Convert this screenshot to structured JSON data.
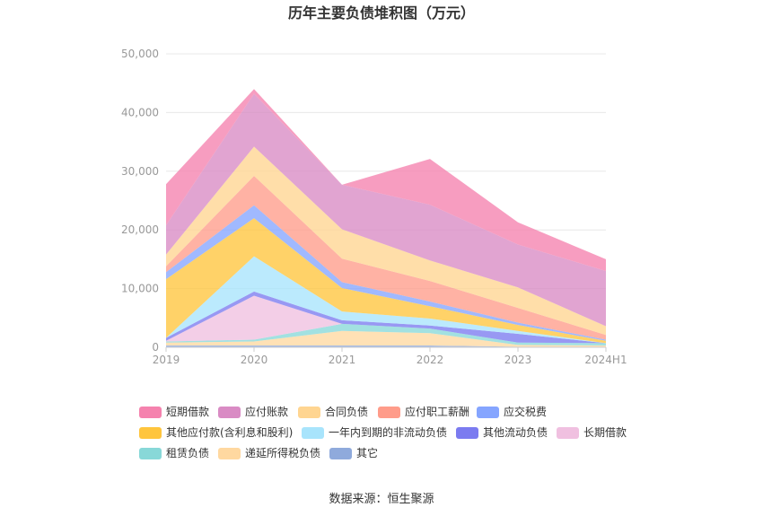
{
  "chart_data": {
    "type": "area",
    "stacked": true,
    "title": "历年主要负债堆积图（万元）",
    "source": "数据来源：恒生聚源",
    "categories": [
      "2019",
      "2020",
      "2021",
      "2022",
      "2023",
      "2024H1"
    ],
    "y_ticks": [
      "0",
      "10,000",
      "20,000",
      "30,000",
      "40,000",
      "50,000"
    ],
    "ylim": [
      0,
      50000
    ],
    "grid": true,
    "legend_position": "bottom",
    "series": [
      {
        "name": "其它",
        "color": "#8faadc",
        "values": [
          300,
          300,
          300,
          300,
          100,
          100
        ]
      },
      {
        "name": "递延所得税负债",
        "color": "#ffd8a0",
        "values": [
          500,
          700,
          2500,
          2100,
          300,
          200
        ]
      },
      {
        "name": "租赁负债",
        "color": "#88d8d8",
        "values": [
          200,
          300,
          1200,
          800,
          400,
          400
        ]
      },
      {
        "name": "长期借款",
        "color": "#f0c0e0",
        "values": [
          100,
          7500,
          0,
          0,
          0,
          0
        ]
      },
      {
        "name": "其他流动负债",
        "color": "#7b7bf0",
        "values": [
          500,
          700,
          600,
          500,
          1500,
          0
        ]
      },
      {
        "name": "一年内到期的非流动负债",
        "color": "#a8e4fc",
        "values": [
          0,
          6000,
          1500,
          1200,
          500,
          0
        ]
      },
      {
        "name": "其他应付款(含利息和股利)",
        "color": "#ffc53d",
        "values": [
          10000,
          6500,
          4000,
          2100,
          1000,
          400
        ]
      },
      {
        "name": "应交税费",
        "color": "#85a5ff",
        "values": [
          1200,
          2200,
          1000,
          800,
          400,
          200
        ]
      },
      {
        "name": "应付职工薪酬",
        "color": "#ff9c8a",
        "values": [
          1000,
          5000,
          4000,
          3500,
          2500,
          800
        ]
      },
      {
        "name": "合同负债",
        "color": "#ffd591",
        "values": [
          2000,
          5000,
          5000,
          3500,
          3500,
          1500
        ]
      },
      {
        "name": "应付账款",
        "color": "#d98bc4",
        "values": [
          5000,
          9000,
          7600,
          9500,
          7300,
          9400
        ]
      },
      {
        "name": "短期借款",
        "color": "#f582ae",
        "values": [
          7000,
          800,
          0,
          7800,
          3800,
          2000
        ]
      }
    ],
    "legend_order": [
      "短期借款",
      "应付账款",
      "合同负债",
      "应付职工薪酬",
      "应交税费",
      "其他应付款(含利息和股利)",
      "一年内到期的非流动负债",
      "其他流动负债",
      "长期借款",
      "租赁负债",
      "递延所得税负债",
      "其它"
    ]
  }
}
